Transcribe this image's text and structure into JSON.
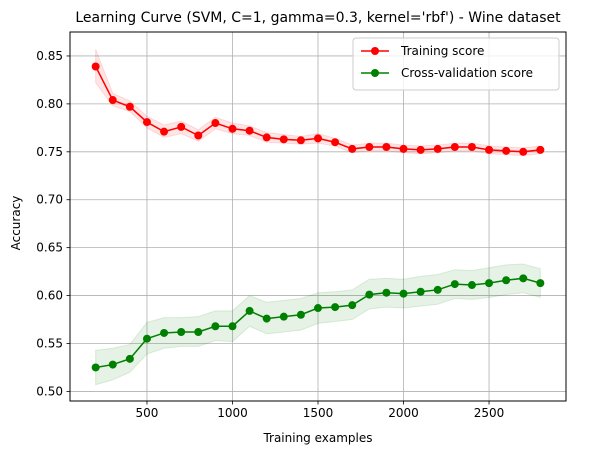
{
  "chart_data": {
    "type": "line",
    "title": "Learning Curve (SVM, C=1, gamma=0.3, kernel='rbf') - Wine dataset",
    "xlabel": "Training examples",
    "ylabel": "Accuracy",
    "xlim": [
      50,
      2950
    ],
    "ylim": [
      0.49,
      0.875
    ],
    "x_ticks": [
      500,
      1000,
      1500,
      2000,
      2500
    ],
    "y_ticks": [
      0.5,
      0.55,
      0.6,
      0.65,
      0.7,
      0.75,
      0.8,
      0.85
    ],
    "grid": true,
    "legend_position": "top-right",
    "x": [
      200,
      300,
      400,
      500,
      600,
      700,
      800,
      900,
      1000,
      1100,
      1200,
      1300,
      1400,
      1500,
      1600,
      1700,
      1800,
      1900,
      2000,
      2100,
      2200,
      2300,
      2400,
      2500,
      2600,
      2700,
      2800
    ],
    "series": [
      {
        "name": "Training score",
        "color": "#ff0000",
        "fill": "#ff0000",
        "values": [
          0.839,
          0.804,
          0.797,
          0.781,
          0.771,
          0.776,
          0.767,
          0.78,
          0.774,
          0.772,
          0.765,
          0.763,
          0.762,
          0.764,
          0.76,
          0.753,
          0.755,
          0.755,
          0.753,
          0.752,
          0.753,
          0.755,
          0.755,
          0.752,
          0.751,
          0.75,
          0.752
        ],
        "lower": [
          0.822,
          0.798,
          0.792,
          0.775,
          0.765,
          0.769,
          0.761,
          0.774,
          0.769,
          0.767,
          0.76,
          0.759,
          0.758,
          0.759,
          0.756,
          0.749,
          0.751,
          0.751,
          0.749,
          0.748,
          0.749,
          0.751,
          0.751,
          0.748,
          0.747,
          0.746,
          0.748
        ],
        "upper": [
          0.857,
          0.811,
          0.803,
          0.787,
          0.778,
          0.782,
          0.773,
          0.786,
          0.78,
          0.777,
          0.77,
          0.768,
          0.766,
          0.769,
          0.764,
          0.757,
          0.759,
          0.759,
          0.757,
          0.756,
          0.757,
          0.759,
          0.759,
          0.756,
          0.755,
          0.754,
          0.756
        ]
      },
      {
        "name": "Cross-validation score",
        "color": "#008000",
        "fill": "#008000",
        "values": [
          0.525,
          0.528,
          0.534,
          0.555,
          0.561,
          0.562,
          0.562,
          0.568,
          0.568,
          0.584,
          0.576,
          0.578,
          0.58,
          0.587,
          0.588,
          0.59,
          0.601,
          0.603,
          0.602,
          0.604,
          0.606,
          0.612,
          0.611,
          0.613,
          0.616,
          0.618,
          0.613
        ],
        "lower": [
          0.507,
          0.512,
          0.52,
          0.539,
          0.545,
          0.547,
          0.547,
          0.553,
          0.552,
          0.568,
          0.56,
          0.562,
          0.564,
          0.571,
          0.573,
          0.575,
          0.586,
          0.588,
          0.587,
          0.589,
          0.591,
          0.597,
          0.596,
          0.598,
          0.601,
          0.603,
          0.598
        ],
        "upper": [
          0.543,
          0.545,
          0.549,
          0.572,
          0.577,
          0.577,
          0.578,
          0.584,
          0.584,
          0.6,
          0.593,
          0.595,
          0.597,
          0.603,
          0.604,
          0.606,
          0.617,
          0.618,
          0.617,
          0.62,
          0.622,
          0.627,
          0.626,
          0.629,
          0.632,
          0.633,
          0.628
        ]
      }
    ]
  }
}
